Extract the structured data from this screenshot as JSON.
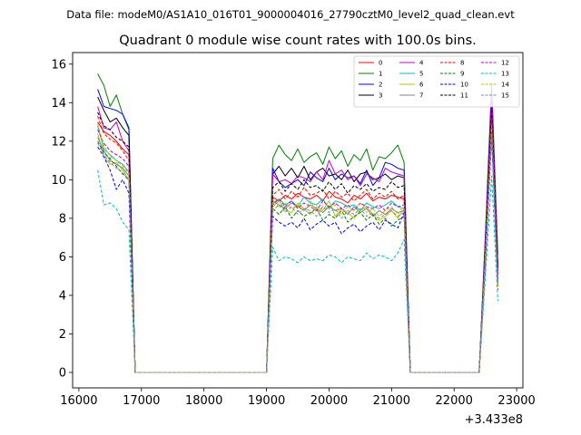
{
  "figure": {
    "suptitle": "Data file: modeM0/AS1A10_016T01_9000004016_27790cztM0_level2_quad_clean.evt",
    "x_offset_label": "+3.433e8"
  },
  "chart_data": {
    "type": "line",
    "title": "Quadrant 0 module wise count rates with 100.0s bins.",
    "xlabel": "",
    "ylabel": "",
    "xlim": [
      15900,
      23100
    ],
    "ylim": [
      -0.8,
      16.6
    ],
    "xticks": [
      16000,
      17000,
      18000,
      19000,
      20000,
      21000,
      22000,
      23000
    ],
    "yticks": [
      0,
      2,
      4,
      6,
      8,
      10,
      12,
      14,
      16
    ],
    "legend_position": "top-right",
    "legend_columns": 4,
    "x": [
      16300,
      16400,
      16500,
      16600,
      16700,
      16800,
      16900,
      17000,
      17500,
      18000,
      18500,
      19000,
      19100,
      19200,
      19300,
      19400,
      19500,
      19600,
      19700,
      19800,
      19900,
      20000,
      20100,
      20200,
      20300,
      20400,
      20500,
      20600,
      20700,
      20800,
      20900,
      21000,
      21100,
      21200,
      21300,
      21400,
      21500,
      22000,
      22400,
      22500,
      22600,
      22700
    ],
    "series": [
      {
        "name": "0",
        "color": "#ff0000",
        "dash": "solid",
        "values": [
          13.0,
          12.5,
          12.3,
          12.0,
          11.6,
          11.3,
          0.0,
          0.0,
          0.0,
          0.0,
          0.0,
          0.0,
          9.1,
          8.9,
          9.2,
          9.0,
          9.3,
          9.1,
          9.0,
          9.2,
          8.9,
          9.4,
          9.1,
          9.0,
          8.8,
          9.2,
          9.0,
          9.3,
          8.9,
          9.1,
          9.0,
          9.2,
          9.1,
          9.0,
          0.0,
          0.0,
          0.0,
          0.0,
          0.0,
          6.0,
          13.2,
          5.0
        ]
      },
      {
        "name": "1",
        "color": "#008000",
        "dash": "solid",
        "values": [
          15.5,
          14.9,
          13.8,
          14.4,
          13.4,
          12.6,
          0.0,
          0.0,
          0.0,
          0.0,
          0.0,
          0.0,
          11.1,
          11.8,
          11.3,
          11.0,
          11.6,
          10.9,
          11.2,
          11.4,
          10.8,
          11.7,
          11.1,
          11.5,
          10.7,
          11.3,
          11.0,
          11.6,
          10.5,
          11.2,
          11.1,
          11.4,
          11.8,
          10.9,
          0.0,
          0.0,
          0.0,
          0.0,
          0.0,
          7.2,
          15.0,
          6.1
        ]
      },
      {
        "name": "2",
        "color": "#0000ff",
        "dash": "solid",
        "values": [
          14.7,
          13.8,
          13.7,
          13.6,
          13.4,
          12.7,
          0.0,
          0.0,
          0.0,
          0.0,
          0.0,
          0.0,
          10.6,
          9.9,
          9.6,
          9.8,
          10.0,
          9.7,
          10.4,
          10.1,
          9.9,
          10.6,
          10.0,
          10.3,
          10.1,
          10.2,
          9.8,
          10.5,
          9.7,
          10.1,
          10.9,
          10.8,
          10.6,
          10.5,
          0.0,
          0.0,
          0.0,
          0.0,
          0.0,
          7.0,
          14.8,
          5.4
        ]
      },
      {
        "name": "3",
        "color": "#000000",
        "dash": "solid",
        "values": [
          14.3,
          13.6,
          13.0,
          13.2,
          12.7,
          12.3,
          0.0,
          0.0,
          0.0,
          0.0,
          0.0,
          0.0,
          10.3,
          10.7,
          10.2,
          10.6,
          10.1,
          10.7,
          10.0,
          10.4,
          10.6,
          10.2,
          10.3,
          10.0,
          10.5,
          9.9,
          10.3,
          10.4,
          10.0,
          10.1,
          10.3,
          10.0,
          10.2,
          10.1,
          0.0,
          0.0,
          0.0,
          0.0,
          0.0,
          6.6,
          13.9,
          5.6
        ]
      },
      {
        "name": "4",
        "color": "#c000c0",
        "dash": "solid",
        "values": [
          13.8,
          12.7,
          12.6,
          13.0,
          12.0,
          11.5,
          0.0,
          0.0,
          0.0,
          0.0,
          0.0,
          0.0,
          10.3,
          9.9,
          10.0,
          9.8,
          10.2,
          10.1,
          9.9,
          10.4,
          10.0,
          11.0,
          10.3,
          10.5,
          10.0,
          10.2,
          9.7,
          10.3,
          10.1,
          9.9,
          10.6,
          10.4,
          10.3,
          10.2,
          0.0,
          0.0,
          0.0,
          0.0,
          0.0,
          6.8,
          14.5,
          5.5
        ]
      },
      {
        "name": "5",
        "color": "#00c0c0",
        "dash": "solid",
        "values": [
          12.8,
          11.6,
          11.3,
          11.0,
          10.8,
          10.4,
          0.0,
          0.0,
          0.0,
          0.0,
          0.0,
          0.0,
          8.8,
          9.0,
          8.7,
          8.9,
          8.6,
          9.1,
          8.8,
          8.7,
          9.0,
          8.5,
          8.9,
          8.8,
          8.6,
          8.7,
          8.4,
          8.8,
          8.6,
          8.5,
          8.7,
          8.9,
          8.6,
          8.5,
          0.0,
          0.0,
          0.0,
          0.0,
          0.0,
          6.3,
          13.0,
          4.8
        ]
      },
      {
        "name": "6",
        "color": "#c0c000",
        "dash": "solid",
        "values": [
          12.4,
          11.2,
          10.8,
          10.9,
          10.5,
          10.0,
          0.0,
          0.0,
          0.0,
          0.0,
          0.0,
          0.0,
          8.6,
          8.9,
          8.4,
          8.3,
          8.8,
          8.5,
          8.2,
          8.6,
          8.4,
          8.9,
          8.1,
          8.5,
          8.3,
          8.0,
          8.4,
          8.6,
          8.2,
          7.9,
          8.1,
          8.4,
          8.0,
          8.5,
          0.0,
          0.0,
          0.0,
          0.0,
          0.0,
          6.1,
          12.7,
          4.5
        ]
      },
      {
        "name": "7",
        "color": "#808080",
        "dash": "solid",
        "values": [
          12.2,
          11.5,
          11.0,
          10.8,
          10.6,
          10.2,
          0.0,
          0.0,
          0.0,
          0.0,
          0.0,
          0.0,
          8.9,
          8.7,
          8.5,
          8.8,
          8.6,
          8.4,
          8.7,
          8.5,
          8.3,
          8.6,
          8.4,
          8.5,
          8.2,
          8.6,
          8.3,
          8.5,
          8.1,
          8.4,
          8.2,
          8.5,
          8.3,
          8.4,
          0.0,
          0.0,
          0.0,
          0.0,
          0.0,
          6.0,
          12.5,
          4.6
        ]
      },
      {
        "name": "8",
        "color": "#ff0000",
        "dash": "dashed",
        "values": [
          13.3,
          12.4,
          12.1,
          11.9,
          11.5,
          11.0,
          0.0,
          0.0,
          0.0,
          0.0,
          0.0,
          0.0,
          9.2,
          9.5,
          9.0,
          9.4,
          9.1,
          9.6,
          9.2,
          9.3,
          9.5,
          9.0,
          9.4,
          9.1,
          9.3,
          8.9,
          9.2,
          9.5,
          9.0,
          9.3,
          9.1,
          9.4,
          9.0,
          9.2,
          0.0,
          0.0,
          0.0,
          0.0,
          0.0,
          6.4,
          13.5,
          5.2
        ]
      },
      {
        "name": "9",
        "color": "#008000",
        "dash": "dashed",
        "values": [
          12.0,
          11.4,
          11.1,
          10.7,
          10.3,
          10.0,
          0.0,
          0.0,
          0.0,
          0.0,
          0.0,
          0.0,
          8.5,
          8.2,
          8.6,
          8.0,
          8.4,
          8.1,
          8.3,
          8.5,
          7.9,
          8.2,
          8.0,
          8.4,
          7.8,
          8.1,
          8.3,
          7.9,
          8.2,
          7.7,
          8.0,
          7.6,
          7.9,
          8.1,
          0.0,
          0.0,
          0.0,
          0.0,
          0.0,
          5.8,
          12.6,
          4.7
        ]
      },
      {
        "name": "10",
        "color": "#0000ff",
        "dash": "dashed",
        "values": [
          11.7,
          11.2,
          10.5,
          9.5,
          10.0,
          9.3,
          0.0,
          0.0,
          0.0,
          0.0,
          0.0,
          0.0,
          8.1,
          7.8,
          7.6,
          7.8,
          7.5,
          8.0,
          7.4,
          7.7,
          7.9,
          7.6,
          7.8,
          7.2,
          7.5,
          7.7,
          7.3,
          7.6,
          7.8,
          7.4,
          7.9,
          7.7,
          7.5,
          8.3,
          0.0,
          0.0,
          0.0,
          0.0,
          0.0,
          5.6,
          12.2,
          4.3
        ]
      },
      {
        "name": "11",
        "color": "#000000",
        "dash": "dashed",
        "values": [
          13.5,
          12.8,
          12.6,
          12.2,
          12.0,
          11.7,
          0.0,
          0.0,
          0.0,
          0.0,
          0.0,
          0.0,
          9.6,
          9.9,
          9.4,
          9.8,
          9.5,
          10.0,
          9.6,
          9.7,
          9.4,
          9.9,
          9.5,
          9.8,
          9.3,
          9.7,
          9.5,
          9.8,
          9.4,
          9.6,
          9.5,
          9.9,
          9.6,
          9.7,
          0.0,
          0.0,
          0.0,
          0.0,
          0.0,
          6.5,
          13.8,
          5.3
        ]
      },
      {
        "name": "12",
        "color": "#c000c0",
        "dash": "dashed",
        "values": [
          12.6,
          11.9,
          11.5,
          11.3,
          11.1,
          10.7,
          0.0,
          0.0,
          0.0,
          0.0,
          0.0,
          0.0,
          8.7,
          9.0,
          8.6,
          8.9,
          8.5,
          8.8,
          8.6,
          8.4,
          8.9,
          8.6,
          8.8,
          8.5,
          8.7,
          8.4,
          8.8,
          8.6,
          8.5,
          8.7,
          8.4,
          8.8,
          8.6,
          8.7,
          0.0,
          0.0,
          0.0,
          0.0,
          0.0,
          6.2,
          13.1,
          4.9
        ]
      },
      {
        "name": "13",
        "color": "#00c0c0",
        "dash": "dashed",
        "values": [
          10.5,
          8.7,
          8.8,
          8.5,
          7.8,
          7.4,
          0.0,
          0.0,
          0.0,
          0.0,
          0.0,
          0.0,
          6.5,
          5.8,
          6.0,
          5.9,
          5.7,
          6.0,
          5.8,
          5.9,
          5.8,
          6.1,
          6.0,
          5.7,
          6.0,
          5.9,
          5.8,
          6.2,
          5.9,
          6.1,
          6.0,
          5.8,
          6.2,
          6.9,
          0.0,
          0.0,
          0.0,
          0.0,
          0.0,
          5.0,
          10.2,
          3.7
        ]
      },
      {
        "name": "14",
        "color": "#c0c000",
        "dash": "dashed",
        "values": [
          12.9,
          11.8,
          11.2,
          11.0,
          10.7,
          10.3,
          0.0,
          0.0,
          0.0,
          0.0,
          0.0,
          0.0,
          8.9,
          8.6,
          8.8,
          8.5,
          8.7,
          8.4,
          8.9,
          8.3,
          8.6,
          8.5,
          8.7,
          8.2,
          8.6,
          8.4,
          8.8,
          8.3,
          8.5,
          8.1,
          8.4,
          8.6,
          8.2,
          8.7,
          0.0,
          0.0,
          0.0,
          0.0,
          0.0,
          6.1,
          12.8,
          4.4
        ]
      },
      {
        "name": "15",
        "color": "#8080c0",
        "dash": "dashed",
        "values": [
          11.9,
          11.3,
          10.9,
          10.6,
          10.4,
          9.9,
          0.0,
          0.0,
          0.0,
          0.0,
          0.0,
          0.0,
          8.4,
          8.7,
          8.3,
          8.6,
          8.2,
          8.5,
          8.4,
          8.1,
          8.6,
          8.3,
          8.5,
          8.0,
          8.4,
          8.2,
          8.5,
          8.1,
          8.3,
          8.0,
          8.2,
          8.4,
          8.1,
          8.3,
          0.0,
          0.0,
          0.0,
          0.0,
          0.0,
          5.9,
          12.3,
          4.6
        ]
      }
    ]
  }
}
